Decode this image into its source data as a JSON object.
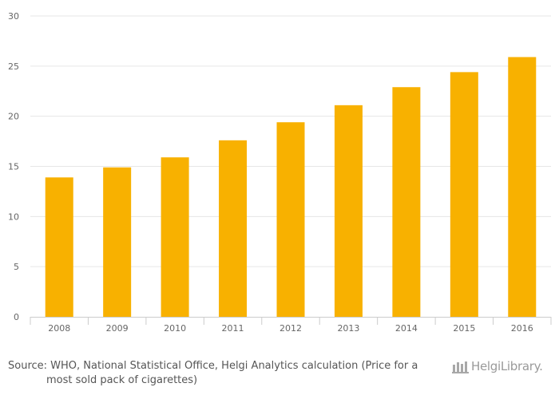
{
  "chart_data": {
    "type": "bar",
    "title": "",
    "xlabel": "",
    "ylabel": "",
    "categories": [
      "2008",
      "2009",
      "2010",
      "2011",
      "2012",
      "2013",
      "2014",
      "2015",
      "2016"
    ],
    "values": [
      13.9,
      14.9,
      15.9,
      17.6,
      19.4,
      21.1,
      22.9,
      24.4,
      25.9
    ],
    "ylim": [
      0,
      30
    ],
    "yticks": [
      "0",
      "5",
      "10",
      "15",
      "20",
      "25",
      "30"
    ],
    "grid": true,
    "bar_color": "#F8B100",
    "gridline_color": "#E6E6E6"
  },
  "footer": {
    "source_line1": "Source: WHO, National Statistical Office, Helgi Analytics calculation (Price for a",
    "source_line2": "most sold pack of cigarettes)",
    "logo_text": "HelgiLibrary.",
    "logo_icon": "library-bars-icon"
  }
}
